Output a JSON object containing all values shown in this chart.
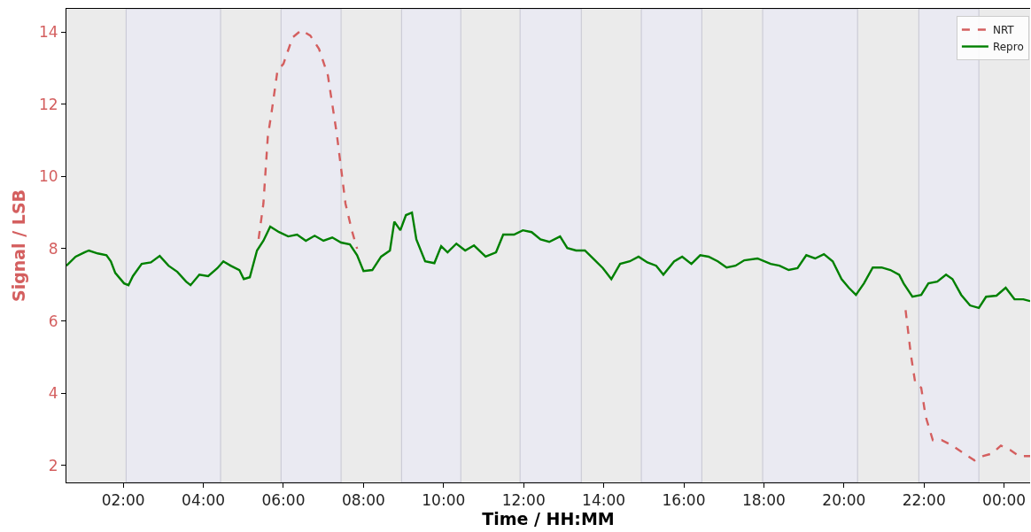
{
  "chart_data": {
    "type": "line",
    "xlabel": "Time / HH:MM",
    "ylabel": "Signal / LSB",
    "xlim": [
      0.58,
      24.65
    ],
    "ylim": [
      1.53,
      14.64
    ],
    "xticks": [
      {
        "value": 2,
        "label": "02:00"
      },
      {
        "value": 4,
        "label": "04:00"
      },
      {
        "value": 6,
        "label": "06:00"
      },
      {
        "value": 8,
        "label": "08:00"
      },
      {
        "value": 10,
        "label": "10:00"
      },
      {
        "value": 12,
        "label": "12:00"
      },
      {
        "value": 14,
        "label": "14:00"
      },
      {
        "value": 16,
        "label": "16:00"
      },
      {
        "value": 18,
        "label": "18:00"
      },
      {
        "value": 20,
        "label": "20:00"
      },
      {
        "value": 22,
        "label": "22:00"
      },
      {
        "value": 24,
        "label": "00:00"
      }
    ],
    "yticks": [
      2,
      4,
      6,
      8,
      10,
      12,
      14
    ],
    "grid": false,
    "legend": "top right",
    "bands": [
      {
        "axis": "x",
        "from": 2.07,
        "to": 4.43,
        "color": "#eaeaf2"
      },
      {
        "axis": "x",
        "from": 5.94,
        "to": 7.44,
        "color": "#eaeaf2"
      },
      {
        "axis": "x",
        "from": 8.95,
        "to": 10.43,
        "color": "#eaeaf2"
      },
      {
        "axis": "x",
        "from": 11.91,
        "to": 13.44,
        "color": "#eaeaf2"
      },
      {
        "axis": "x",
        "from": 14.94,
        "to": 16.45,
        "color": "#eaeaf2"
      },
      {
        "axis": "x",
        "from": 17.97,
        "to": 20.34,
        "color": "#eaeaf2"
      },
      {
        "axis": "x",
        "from": 21.87,
        "to": 23.37,
        "color": "#eaeaf2"
      }
    ],
    "series": [
      {
        "name": "NRT",
        "color": "#d45f5f",
        "line_style": "dashed",
        "x": [
          5.38,
          5.5,
          5.61,
          5.72,
          5.85,
          6.0,
          6.23,
          6.45,
          6.67,
          6.89,
          7.11,
          7.33,
          7.55,
          7.71,
          7.84,
          14.0,
          21.54,
          21.67,
          21.78,
          21.93,
          22.04,
          22.22,
          22.44,
          22.71,
          22.93,
          23.26,
          23.48,
          23.7,
          23.92,
          24.15,
          24.37,
          24.65
        ],
        "values": [
          8.27,
          9.25,
          11.1,
          11.9,
          12.92,
          13.12,
          13.85,
          14.05,
          13.9,
          13.53,
          12.8,
          11.2,
          9.25,
          8.5,
          8.0,
          null,
          6.3,
          5.08,
          4.29,
          4.15,
          3.36,
          2.7,
          2.7,
          2.55,
          2.38,
          2.14,
          2.26,
          2.33,
          2.55,
          2.43,
          2.26,
          2.26
        ]
      },
      {
        "name": "Repro",
        "color": "#008000",
        "line_style": "solid",
        "x": [
          0.58,
          0.81,
          1.03,
          1.14,
          1.36,
          1.58,
          1.69,
          1.8,
          2.02,
          2.13,
          2.24,
          2.46,
          2.69,
          2.91,
          3.13,
          3.35,
          3.57,
          3.68,
          3.9,
          4.12,
          4.35,
          4.5,
          4.68,
          4.9,
          5.01,
          5.16,
          5.34,
          5.5,
          5.67,
          5.89,
          6.12,
          6.34,
          6.56,
          6.78,
          7.0,
          7.22,
          7.44,
          7.66,
          7.84,
          8.0,
          8.22,
          8.44,
          8.66,
          8.77,
          8.92,
          9.06,
          9.21,
          9.32,
          9.54,
          9.77,
          9.94,
          10.1,
          10.32,
          10.54,
          10.76,
          11.05,
          11.31,
          11.49,
          11.76,
          11.98,
          12.2,
          12.42,
          12.64,
          12.91,
          13.09,
          13.31,
          13.53,
          13.76,
          13.98,
          14.19,
          14.41,
          14.65,
          14.87,
          15.09,
          15.31,
          15.49,
          15.76,
          15.96,
          16.19,
          16.41,
          16.62,
          16.85,
          17.07,
          17.29,
          17.51,
          17.84,
          18.17,
          18.39,
          18.62,
          18.84,
          19.06,
          19.28,
          19.5,
          19.72,
          19.94,
          20.12,
          20.3,
          20.5,
          20.72,
          20.94,
          21.16,
          21.38,
          21.49,
          21.71,
          21.93,
          22.11,
          22.33,
          22.55,
          22.71,
          22.93,
          23.15,
          23.37,
          23.55,
          23.81,
          24.04,
          24.26,
          24.48,
          24.65
        ],
        "values": [
          7.53,
          7.78,
          7.9,
          7.95,
          7.87,
          7.82,
          7.65,
          7.33,
          7.04,
          6.99,
          7.24,
          7.58,
          7.62,
          7.8,
          7.53,
          7.36,
          7.09,
          6.99,
          7.28,
          7.24,
          7.46,
          7.65,
          7.53,
          7.41,
          7.16,
          7.21,
          7.95,
          8.22,
          8.61,
          8.46,
          8.34,
          8.39,
          8.22,
          8.36,
          8.22,
          8.31,
          8.17,
          8.12,
          7.82,
          7.38,
          7.41,
          7.78,
          7.95,
          8.75,
          8.51,
          8.93,
          9.0,
          8.26,
          7.65,
          7.6,
          8.07,
          7.9,
          8.14,
          7.95,
          8.09,
          7.78,
          7.9,
          8.39,
          8.39,
          8.51,
          8.46,
          8.26,
          8.19,
          8.34,
          8.02,
          7.95,
          7.95,
          7.7,
          7.46,
          7.16,
          7.58,
          7.65,
          7.78,
          7.62,
          7.53,
          7.28,
          7.65,
          7.78,
          7.58,
          7.82,
          7.78,
          7.65,
          7.48,
          7.53,
          7.68,
          7.73,
          7.58,
          7.53,
          7.41,
          7.46,
          7.82,
          7.73,
          7.85,
          7.65,
          7.16,
          6.92,
          6.72,
          7.04,
          7.48,
          7.48,
          7.41,
          7.28,
          7.04,
          6.67,
          6.72,
          7.04,
          7.09,
          7.28,
          7.16,
          6.72,
          6.43,
          6.36,
          6.67,
          6.7,
          6.92,
          6.6,
          6.6,
          6.55
        ]
      }
    ]
  }
}
